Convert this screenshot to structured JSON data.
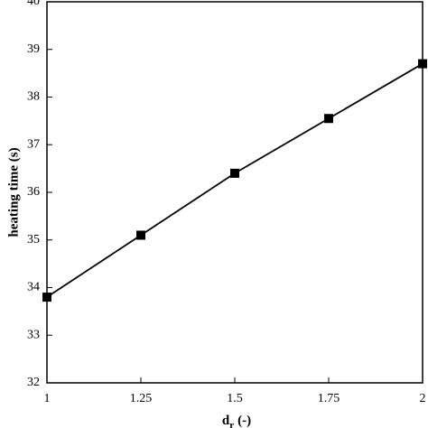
{
  "chart_data": {
    "type": "line",
    "x_label": [
      "d",
      "r",
      "(-)"
    ],
    "y_label": "heating time (s)",
    "x": [
      1,
      1.25,
      1.5,
      1.75,
      2
    ],
    "series": [
      {
        "color": "#000000",
        "values": [
          33.8,
          35.1,
          36.4,
          37.55,
          38.7
        ]
      }
    ],
    "xlim": [
      1,
      2
    ],
    "xticks": [
      1,
      1.25,
      1.5,
      1.75,
      2
    ],
    "ylim": [
      32,
      40
    ],
    "yticks": [
      32,
      33,
      34,
      35,
      36,
      37,
      38,
      39,
      40
    ],
    "grid": false
  }
}
